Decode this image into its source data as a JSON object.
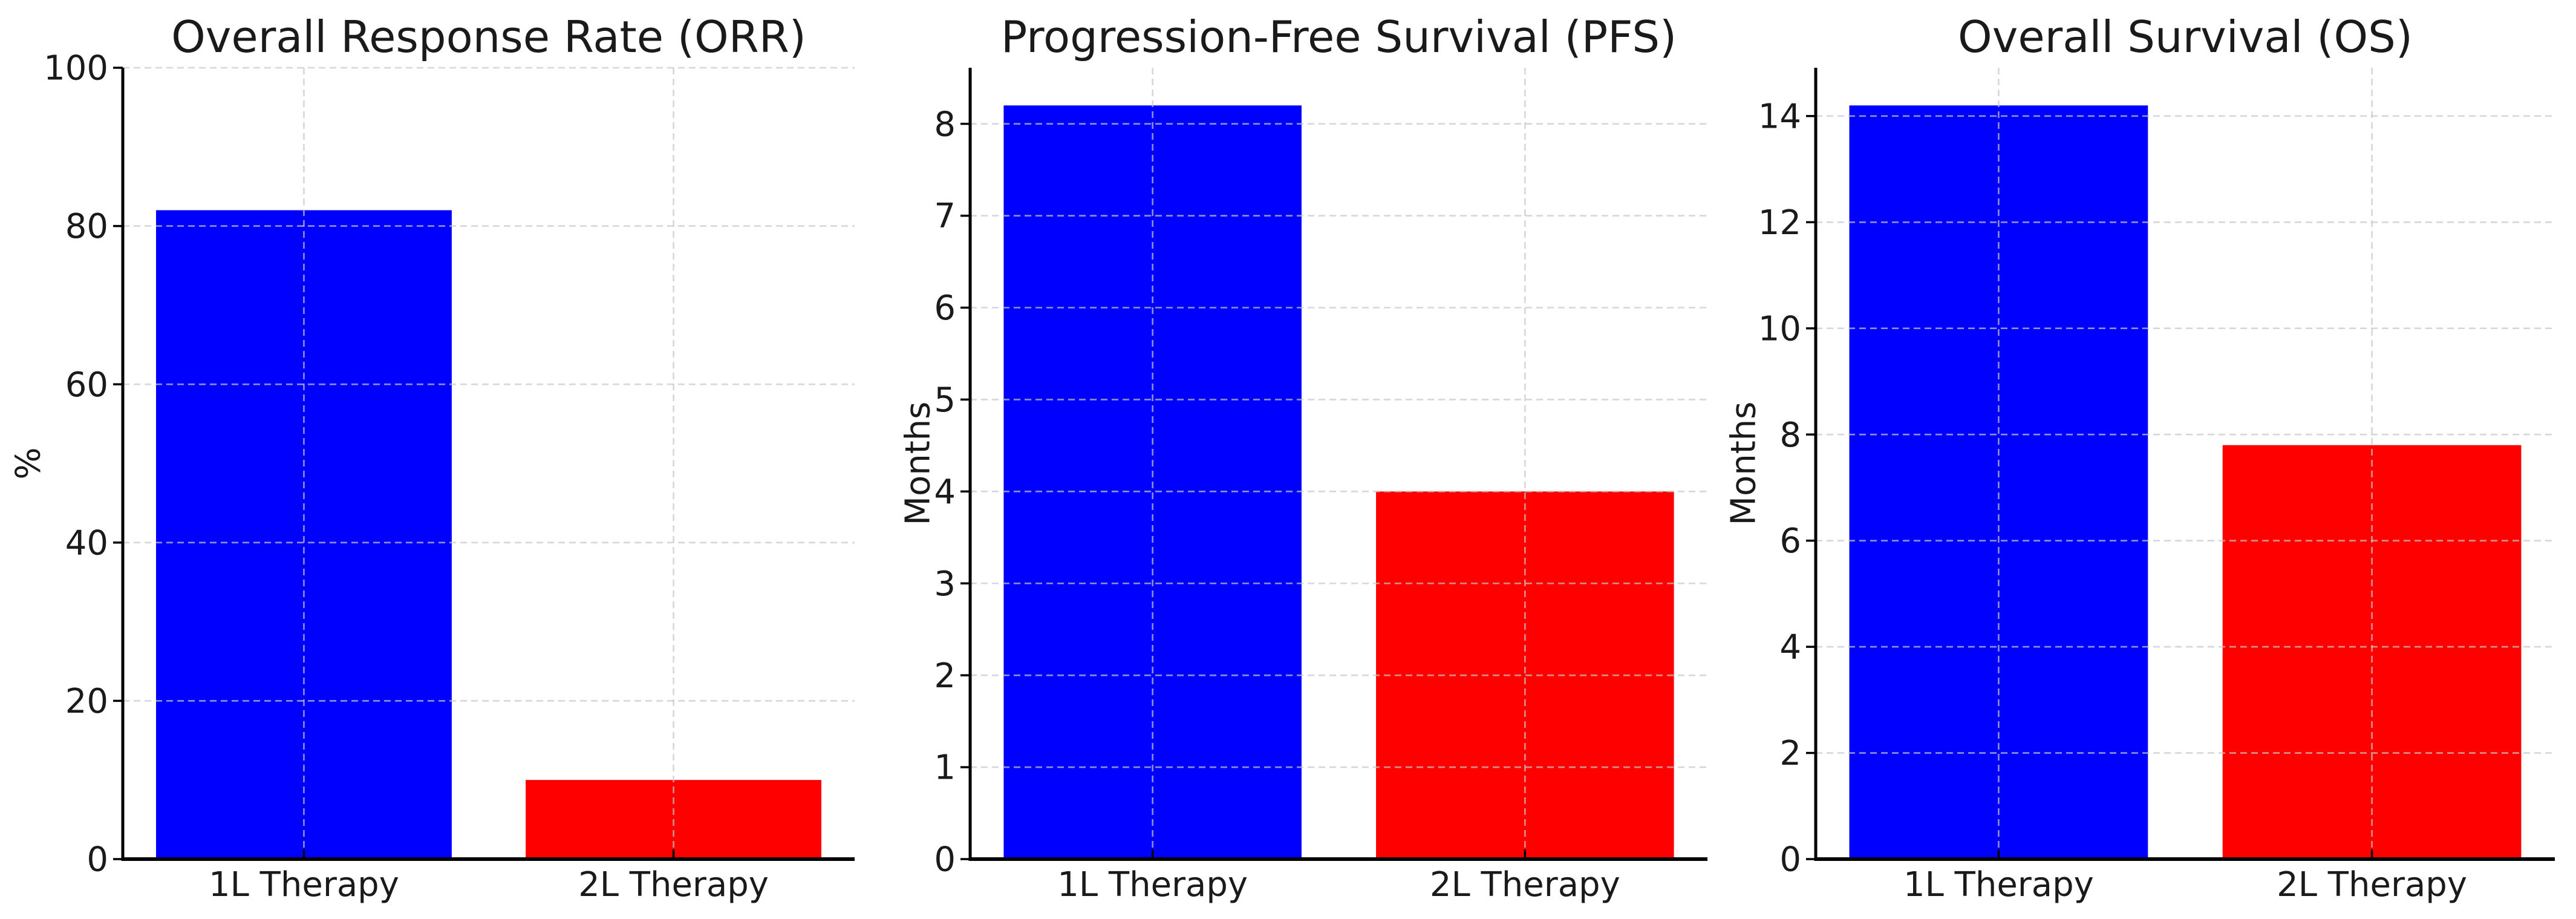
{
  "figure": {
    "background_color": "#ffffff",
    "text_color": "#1a1a1a",
    "axis_color": "#000000",
    "grid_color": "#c8c8c8"
  },
  "chart_data": [
    {
      "type": "bar",
      "title": "Overall Response Rate (ORR)",
      "ylabel": "%",
      "categories": [
        "1L Therapy",
        "2L Therapy"
      ],
      "values": [
        82,
        10
      ],
      "bar_colors": [
        "#0000ff",
        "#ff0000"
      ],
      "ylim": [
        0,
        100
      ],
      "yticks": [
        0,
        20,
        40,
        60,
        80,
        100
      ],
      "grid": true,
      "grid_style": "dashed"
    },
    {
      "type": "bar",
      "title": "Progression-Free Survival (PFS)",
      "ylabel": "Months",
      "categories": [
        "1L Therapy",
        "2L Therapy"
      ],
      "values": [
        8.2,
        4.0
      ],
      "bar_colors": [
        "#0000ff",
        "#ff0000"
      ],
      "ylim": [
        0,
        8.61
      ],
      "yticks": [
        0,
        1,
        2,
        3,
        4,
        5,
        6,
        7,
        8
      ],
      "grid": true,
      "grid_style": "dashed"
    },
    {
      "type": "bar",
      "title": "Overall Survival (OS)",
      "ylabel": "Months",
      "categories": [
        "1L Therapy",
        "2L Therapy"
      ],
      "values": [
        14.2,
        7.8
      ],
      "bar_colors": [
        "#0000ff",
        "#ff0000"
      ],
      "ylim": [
        0,
        14.91
      ],
      "yticks": [
        0,
        2,
        4,
        6,
        8,
        10,
        12,
        14
      ],
      "grid": true,
      "grid_style": "dashed"
    }
  ]
}
